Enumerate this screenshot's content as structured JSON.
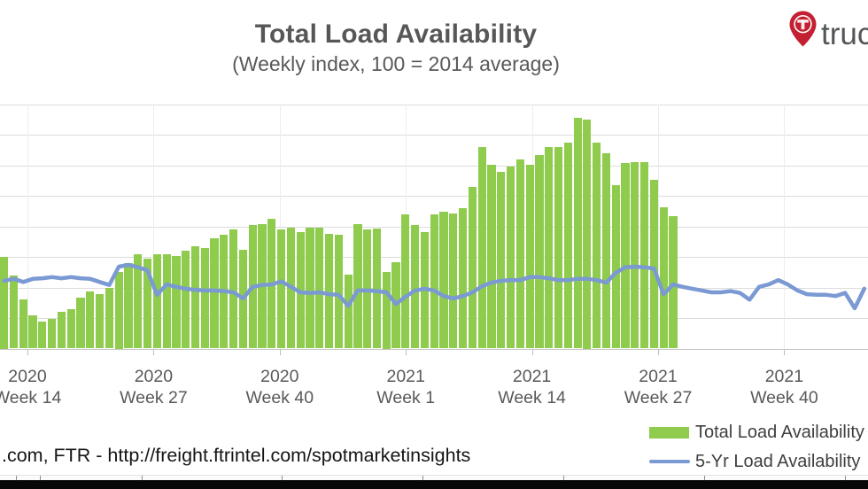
{
  "header": {
    "title": "Total Load Availability",
    "subtitle": "(Weekly index, 100 = 2014 average)"
  },
  "logo": {
    "text": "truc",
    "pin_color": "#C32032",
    "icon": "truckstop-map-pin-icon"
  },
  "source": {
    "text": ".com, FTR - http://freight.ftrintel.com/spotmarketinsights"
  },
  "colors": {
    "bar_green": "#8FCB4D",
    "line_blue": "#7B99D3",
    "grid_gray": "#DCDCDC",
    "text_gray": "#595959"
  },
  "chart_data": {
    "type": "bar",
    "title": "Total Load Availability",
    "subtitle": "(Weekly index, 100 = 2014 average)",
    "grid": "horizontal",
    "legend_position": "bottom-right",
    "y_axis_labels_visible": false,
    "ylim": [
      0,
      425
    ],
    "y_grid_step": 50,
    "y_grid_max": 400,
    "x_tick_labels": [
      {
        "year": "2020",
        "week": "Week 14"
      },
      {
        "year": "2020",
        "week": "Week 27"
      },
      {
        "year": "2020",
        "week": "Week 40"
      },
      {
        "year": "2021",
        "week": "Week 1"
      },
      {
        "year": "2021",
        "week": "Week 14"
      },
      {
        "year": "2021",
        "week": "Week 27"
      },
      {
        "year": "2021",
        "week": "Week 40"
      }
    ],
    "series": [
      {
        "name": "Total Load Availability",
        "type": "bar",
        "color": "#8FCB4D",
        "values": [
          150,
          119,
          81,
          54,
          44,
          48,
          60,
          65,
          83,
          93,
          89,
          99,
          125,
          140,
          154,
          147,
          154,
          154,
          151,
          160,
          167,
          164,
          180,
          186,
          195,
          161,
          202,
          204,
          212,
          195,
          198,
          190,
          198,
          198,
          188,
          186,
          121,
          204,
          195,
          196,
          125,
          141,
          220,
          202,
          190,
          220,
          224,
          221,
          230,
          265,
          329,
          301,
          289,
          298,
          310,
          301,
          317,
          329,
          330,
          337,
          378,
          375,
          337,
          320,
          267,
          304,
          305,
          305,
          276,
          231,
          217
        ]
      },
      {
        "name": "5-Yr Load Availability",
        "type": "line",
        "color": "#7B99D3",
        "values": [
          111,
          114,
          109,
          114,
          115,
          117,
          115,
          117,
          115,
          114,
          109,
          104,
          134,
          137,
          133,
          128,
          88,
          105,
          101,
          98,
          96,
          95,
          95,
          94,
          92,
          82,
          101,
          104,
          105,
          110,
          101,
          92,
          91,
          92,
          89,
          88,
          70,
          95,
          95,
          94,
          92,
          73,
          85,
          95,
          98,
          95,
          86,
          82,
          86,
          92,
          102,
          108,
          111,
          112,
          112,
          117,
          117,
          115,
          112,
          112,
          114,
          114,
          112,
          108,
          124,
          133,
          134,
          133,
          131,
          89,
          105,
          101,
          98,
          95,
          92,
          92,
          94,
          91,
          80,
          101,
          105,
          112,
          105,
          95,
          89,
          88,
          88,
          86,
          91,
          66,
          98
        ]
      }
    ]
  }
}
